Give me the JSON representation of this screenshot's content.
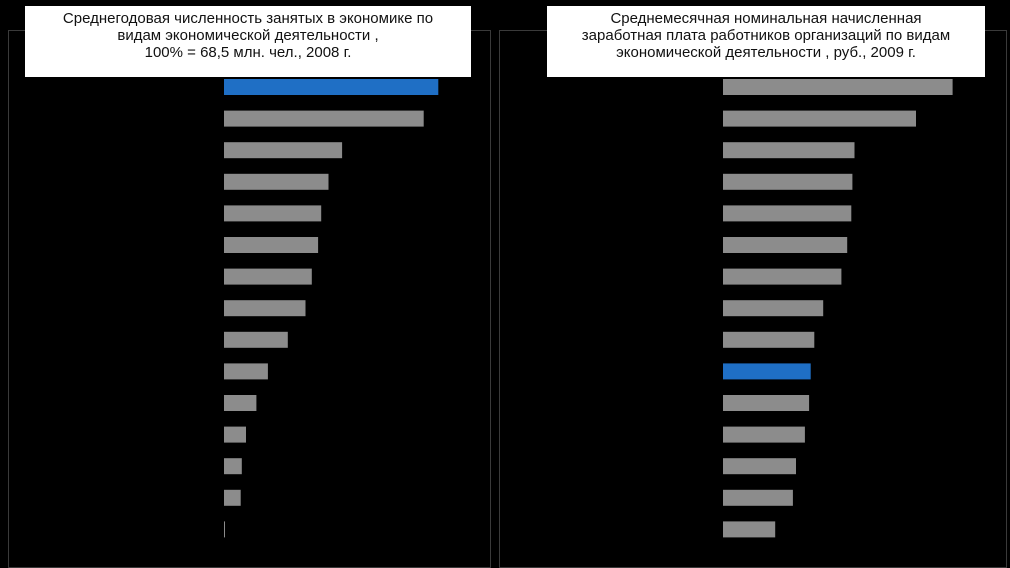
{
  "colors": {
    "background": "#000000",
    "bar": "#8c8c8c",
    "highlight": "#1f6fc5"
  },
  "chart_data": [
    {
      "type": "bar",
      "orientation": "horizontal",
      "title_lines": [
        "Среднегодовая численность занятых в экономике по",
        "видам экономической деятельности ,",
        "100% = 68,5 млн. чел., 2008 г."
      ],
      "values": [
        20.5,
        19.1,
        11.3,
        10.0,
        9.3,
        9.0,
        8.4,
        7.8,
        6.1,
        4.2,
        3.1,
        2.1,
        1.7,
        1.6,
        0.1
      ],
      "highlight_index": 0,
      "xlim": [
        0,
        22
      ],
      "legend": "none",
      "grid": false
    },
    {
      "type": "bar",
      "orientation": "horizontal",
      "title_lines": [
        "Среднемесячная номинальная начисленная",
        "заработная плата работников организаций по видам",
        "экономической деятельности , руб., 2009 г."
      ],
      "values": [
        44000,
        37000,
        25200,
        24800,
        24600,
        23800,
        22700,
        19200,
        17500,
        16800,
        16500,
        15700,
        14000,
        13400,
        10000
      ],
      "highlight_index": 9,
      "xlim": [
        0,
        46000
      ],
      "legend": "none",
      "grid": false
    }
  ]
}
